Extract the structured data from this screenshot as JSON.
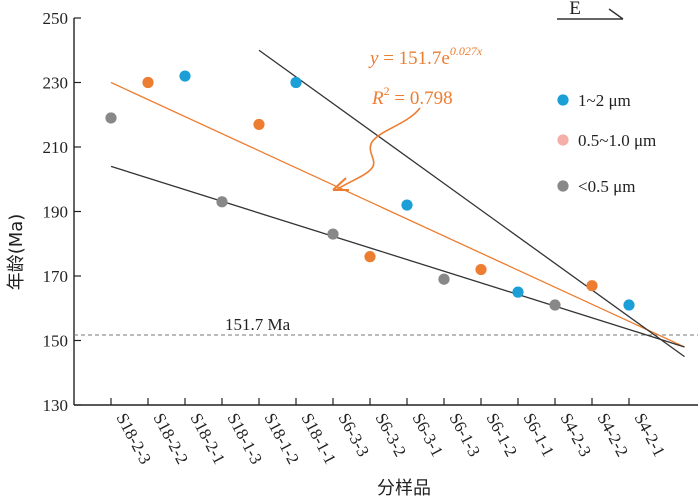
{
  "chart_data": {
    "type": "scatter",
    "ylabel": "年龄(Ma)",
    "xlabel": "分样品",
    "ylim": [
      130,
      250
    ],
    "yticks": [
      130,
      150,
      170,
      190,
      210,
      230,
      250
    ],
    "categories": [
      "S18-2-3",
      "S18-2-2",
      "S18-2-1",
      "S18-1-3",
      "S18-1-2",
      "S18-1-1",
      "S6-3-3",
      "S6-3-2",
      "S6-3-1",
      "S6-1-3",
      "S6-1-2",
      "S6-1-1",
      "S4-2-3",
      "S4-2-2",
      "S4-2-1"
    ],
    "series": [
      {
        "name": "1~2 μm",
        "color": "#1B9FD6",
        "points": [
          {
            "x": "S18-2-1",
            "y": 232
          },
          {
            "x": "S18-1-1",
            "y": 230
          },
          {
            "x": "S6-3-1",
            "y": 192
          },
          {
            "x": "S6-1-1",
            "y": 165
          },
          {
            "x": "S4-2-1",
            "y": 161
          }
        ]
      },
      {
        "name": "0.5~1.0 μm",
        "color": "#ED7D31",
        "legend_color": "#F4AFA8",
        "points": [
          {
            "x": "S18-2-2",
            "y": 230
          },
          {
            "x": "S18-1-2",
            "y": 217
          },
          {
            "x": "S6-3-2",
            "y": 176
          },
          {
            "x": "S6-1-2",
            "y": 172
          },
          {
            "x": "S4-2-2",
            "y": 167
          }
        ]
      },
      {
        "name": "<0.5 μm",
        "color": "#888888",
        "points": [
          {
            "x": "S18-2-3",
            "y": 219
          },
          {
            "x": "S18-1-3",
            "y": 193
          },
          {
            "x": "S6-3-3",
            "y": 183
          },
          {
            "x": "S6-1-3",
            "y": 169
          },
          {
            "x": "S4-2-3",
            "y": 161
          }
        ]
      }
    ],
    "trend_lines": [
      {
        "color": "#ED7D31",
        "from": {
          "x": 1,
          "y": 230
        },
        "to": {
          "x": 16.5,
          "y": 148
        }
      },
      {
        "color": "#333333",
        "from": {
          "x": 1,
          "y": 204
        },
        "to": {
          "x": 16.5,
          "y": 148
        }
      },
      {
        "color": "#333333",
        "from": {
          "x": 5,
          "y": 240
        },
        "to": {
          "x": 16.5,
          "y": 145
        }
      }
    ],
    "reference_line": {
      "y": 151.7,
      "label": "151.7 Ma"
    },
    "equation": {
      "lhs": "y",
      "eq": " = 151.7e",
      "exponent": "0.027x",
      "r2_lhs": "R",
      "r2_sup": "2",
      "r2_eq": " = 0.798"
    },
    "direction_label": "E",
    "grid": false,
    "legend_position": "right"
  }
}
